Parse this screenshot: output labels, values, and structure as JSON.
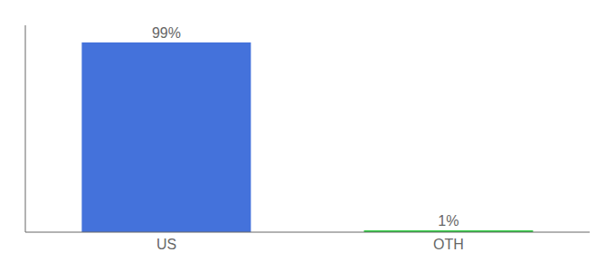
{
  "chart_data": {
    "type": "bar",
    "categories": [
      "US",
      "OTH"
    ],
    "values": [
      99,
      1
    ],
    "value_labels": [
      "99%",
      "1%"
    ],
    "colors": [
      "#4472db",
      "#2ecc40"
    ],
    "ylim": [
      0,
      108
    ],
    "data_labels": true,
    "tick_labels": "x",
    "grid": false
  }
}
